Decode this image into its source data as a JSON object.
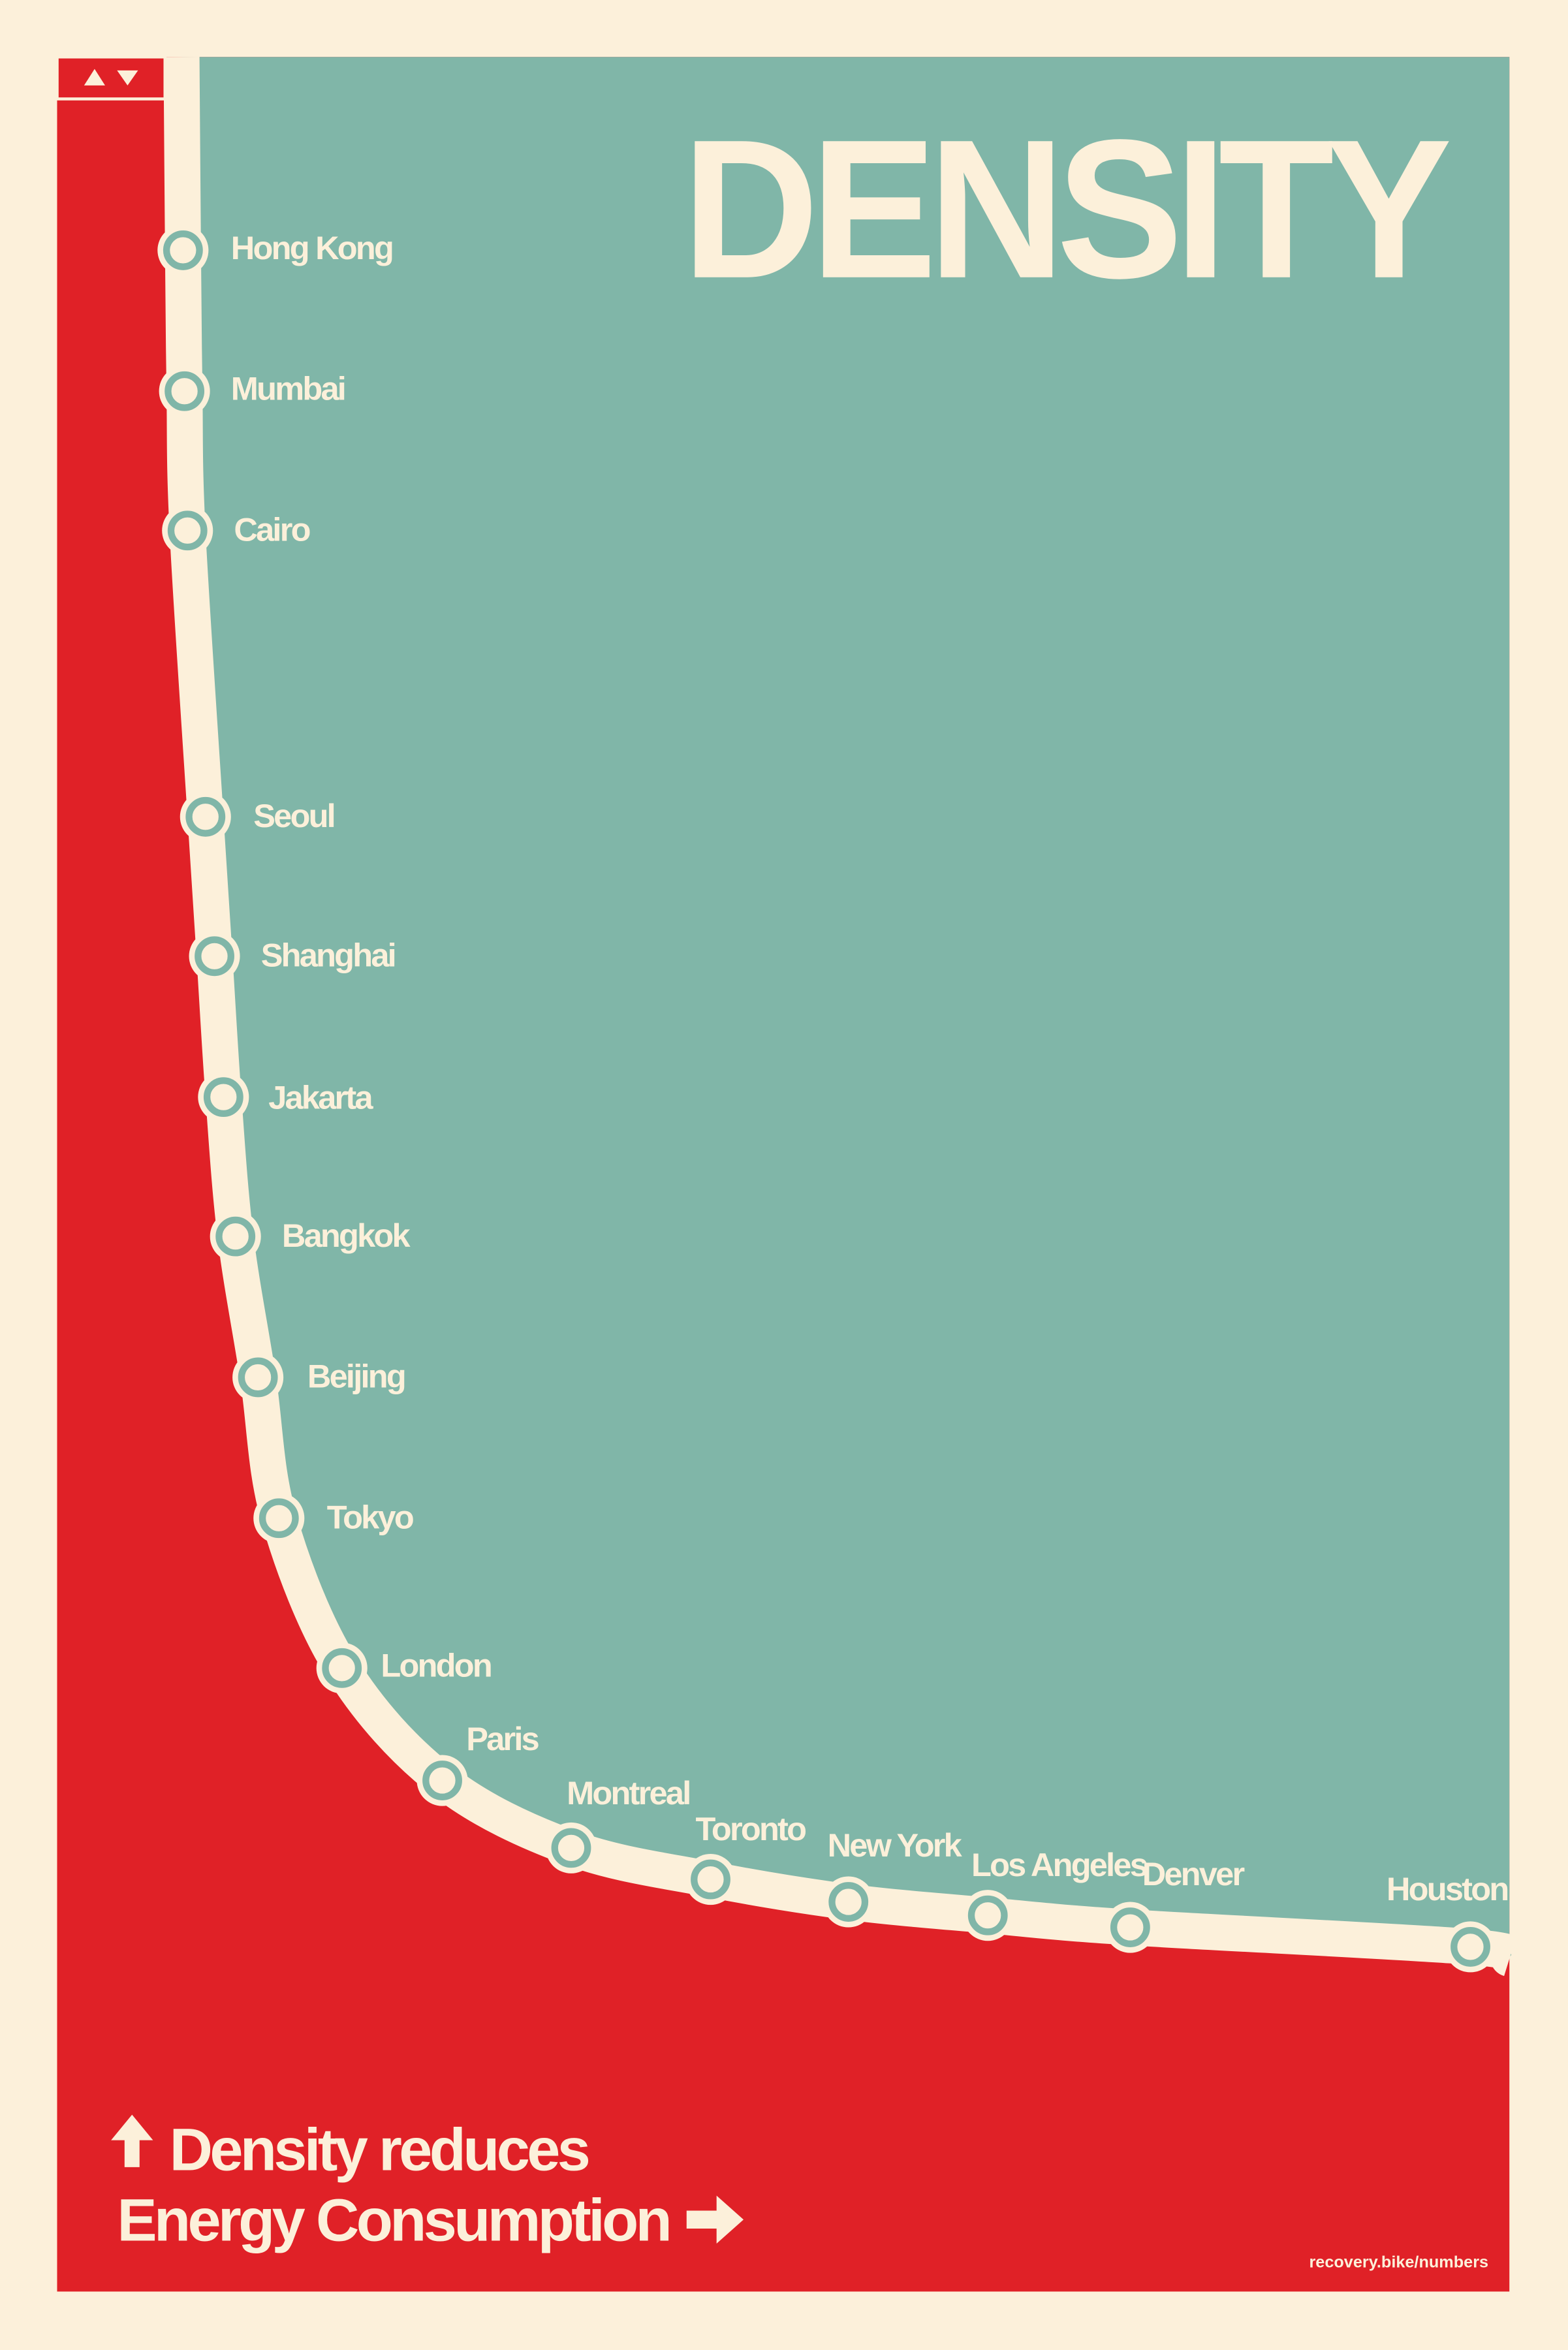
{
  "title": "DENSITY",
  "cities": [
    "Hong Kong",
    "Mumbai",
    "Cairo",
    "Seoul",
    "Shanghai",
    "Jakarta",
    "Bangkok",
    "Beijing",
    "Tokyo",
    "London",
    "Paris",
    "Montreal",
    "Toronto",
    "New York",
    "Los Angeles",
    "Denver",
    "Houston"
  ],
  "caption": [
    "Density reduces",
    "Energy Consumption"
  ],
  "source": "recovery.bike/numbers"
}
